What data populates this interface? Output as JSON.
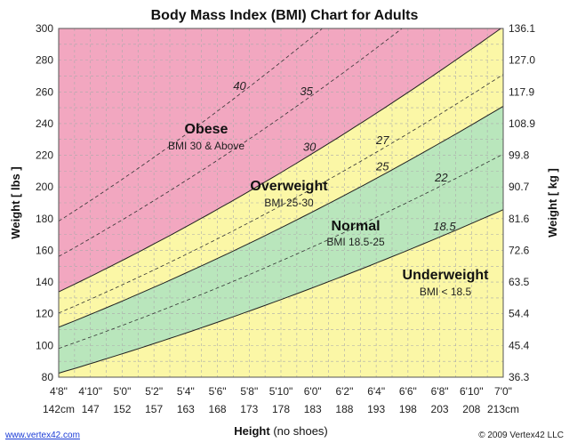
{
  "chart_data": {
    "type": "area",
    "title": "Body Mass Index (BMI) Chart for Adults",
    "xlabel": "Height",
    "xlabel_note": "(no shoes)",
    "ylabel_left": "Weight [ lbs ]",
    "ylabel_right": "Weight [ kg ]",
    "x_range_in": [
      56,
      84
    ],
    "ylim_lbs": [
      80,
      300
    ],
    "grid": true,
    "x_ticks": [
      {
        "in": 56,
        "ft": "4'8\"",
        "cm": "142cm"
      },
      {
        "in": 58,
        "ft": "4'10\"",
        "cm": "147"
      },
      {
        "in": 60,
        "ft": "5'0\"",
        "cm": "152"
      },
      {
        "in": 62,
        "ft": "5'2\"",
        "cm": "157"
      },
      {
        "in": 64,
        "ft": "5'4\"",
        "cm": "163"
      },
      {
        "in": 66,
        "ft": "5'6\"",
        "cm": "168"
      },
      {
        "in": 68,
        "ft": "5'8\"",
        "cm": "173"
      },
      {
        "in": 70,
        "ft": "5'10\"",
        "cm": "178"
      },
      {
        "in": 72,
        "ft": "6'0\"",
        "cm": "183"
      },
      {
        "in": 74,
        "ft": "6'2\"",
        "cm": "188"
      },
      {
        "in": 76,
        "ft": "6'4\"",
        "cm": "193"
      },
      {
        "in": 78,
        "ft": "6'6\"",
        "cm": "198"
      },
      {
        "in": 80,
        "ft": "6'8\"",
        "cm": "203"
      },
      {
        "in": 82,
        "ft": "6'10\"",
        "cm": "208"
      },
      {
        "in": 84,
        "ft": "7'0\"",
        "cm": "213cm"
      }
    ],
    "y_ticks_lbs": [
      80,
      100,
      120,
      140,
      160,
      180,
      200,
      220,
      240,
      260,
      280,
      300
    ],
    "y_ticks_kg": [
      "36.3",
      "45.4",
      "54.4",
      "63.5",
      "72.6",
      "81.6",
      "90.7",
      "99.8",
      "108.9",
      "117.9",
      "127.0",
      "136.1"
    ],
    "bmi_lines": [
      {
        "bmi": 18.5,
        "label": "18.5",
        "label_at_in": 80.3,
        "style": "solid"
      },
      {
        "bmi": 22,
        "label": "22",
        "label_at_in": 80.1,
        "style": "dashed"
      },
      {
        "bmi": 25,
        "label": "25",
        "label_at_in": 76.4,
        "style": "solid"
      },
      {
        "bmi": 27,
        "label": "27",
        "label_at_in": 76.4,
        "style": "dashed"
      },
      {
        "bmi": 30,
        "label": "30",
        "label_at_in": 71.8,
        "style": "solid"
      },
      {
        "bmi": 35,
        "label": "35",
        "label_at_in": 71.6,
        "style": "dashed"
      },
      {
        "bmi": 40,
        "label": "40",
        "label_at_in": 67.4,
        "style": "dashed"
      }
    ],
    "zones": [
      {
        "name": "Obese",
        "range": "BMI 30 & Above",
        "from": 30,
        "to": null,
        "color": "#f2a7c0"
      },
      {
        "name": "Overweight",
        "range": "BMI 25-30",
        "from": 25,
        "to": 30,
        "color": "#fbf7a6"
      },
      {
        "name": "Normal",
        "range": "BMI 18.5-25",
        "from": 18.5,
        "to": 25,
        "color": "#b9e6bc"
      },
      {
        "name": "Underweight",
        "range": "BMI < 18.5",
        "from": null,
        "to": 18.5,
        "color": "#fbf7a6"
      }
    ]
  },
  "footer": {
    "left": "www.vertex42.com",
    "right": "© 2009 Vertex42 LLC"
  }
}
